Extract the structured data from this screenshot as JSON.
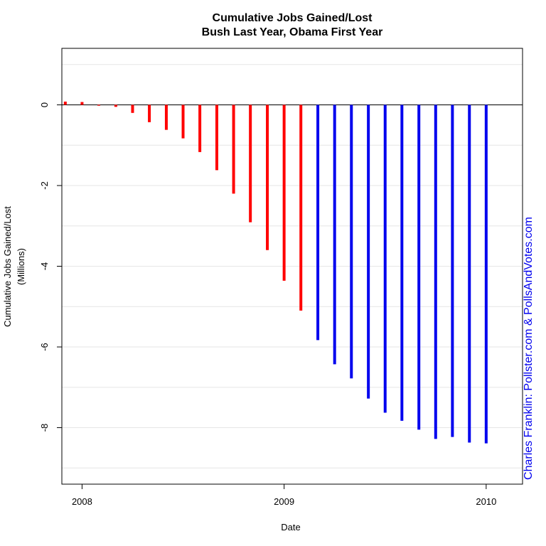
{
  "chart_data": {
    "type": "bar",
    "title": [
      "Cumulative Jobs Gained/Lost",
      "Bush Last Year, Obama First Year"
    ],
    "xlabel": "Date",
    "ylabel": [
      "Cumulative Jobs Gained/Lost",
      "(Millions)"
    ],
    "credit": "Charles Franklin: Pollster.com & PollsAndVotes.com",
    "xlim": [
      2007.9,
      2010.18
    ],
    "ylim": [
      -9.4,
      1.4
    ],
    "x_ticks": [
      {
        "value": 2008,
        "label": "2008"
      },
      {
        "value": 2009,
        "label": "2009"
      },
      {
        "value": 2010,
        "label": "2010"
      }
    ],
    "y_ticks": [
      {
        "value": 0,
        "label": "0"
      },
      {
        "value": -2,
        "label": "-2"
      },
      {
        "value": -4,
        "label": "-4"
      },
      {
        "value": -6,
        "label": "-6"
      },
      {
        "value": -8,
        "label": "-8"
      }
    ],
    "gridlines_y": [
      1,
      0,
      -1,
      -2,
      -3,
      -4,
      -5,
      -6,
      -7,
      -8,
      -9
    ],
    "grid": true,
    "colors": {
      "bush": "#ff0000",
      "obama": "#0000ee",
      "grid": "#e6e6e6"
    },
    "series": [
      {
        "name": "Bush",
        "color": "#ff0000",
        "points": [
          {
            "x": 2007.917,
            "y": 0.08
          },
          {
            "x": 2008.0,
            "y": 0.07
          },
          {
            "x": 2008.083,
            "y": -0.02
          },
          {
            "x": 2008.167,
            "y": -0.05
          },
          {
            "x": 2008.25,
            "y": -0.2
          },
          {
            "x": 2008.333,
            "y": -0.43
          },
          {
            "x": 2008.417,
            "y": -0.62
          },
          {
            "x": 2008.5,
            "y": -0.83
          },
          {
            "x": 2008.583,
            "y": -1.17
          },
          {
            "x": 2008.667,
            "y": -1.62
          },
          {
            "x": 2008.75,
            "y": -2.2
          },
          {
            "x": 2008.833,
            "y": -2.91
          },
          {
            "x": 2008.917,
            "y": -3.6
          },
          {
            "x": 2009.0,
            "y": -4.36
          },
          {
            "x": 2009.083,
            "y": -5.1
          }
        ]
      },
      {
        "name": "Obama",
        "color": "#0000ee",
        "points": [
          {
            "x": 2009.167,
            "y": -5.83
          },
          {
            "x": 2009.25,
            "y": -6.43
          },
          {
            "x": 2009.333,
            "y": -6.78
          },
          {
            "x": 2009.417,
            "y": -7.28
          },
          {
            "x": 2009.5,
            "y": -7.63
          },
          {
            "x": 2009.583,
            "y": -7.83
          },
          {
            "x": 2009.667,
            "y": -8.05
          },
          {
            "x": 2009.75,
            "y": -8.28
          },
          {
            "x": 2009.833,
            "y": -8.23
          },
          {
            "x": 2009.917,
            "y": -8.37
          },
          {
            "x": 2010.0,
            "y": -8.39
          }
        ]
      }
    ]
  }
}
